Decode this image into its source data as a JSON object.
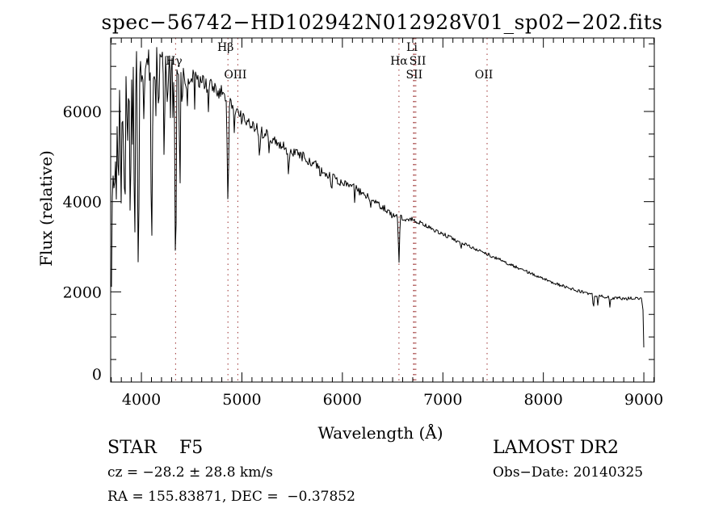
{
  "annotations": {
    "object_class": "STAR    F5",
    "survey": "LAMOST DR2",
    "cz": "cz = −28.2 ± 28.8 km/s",
    "obs_date": "Obs−Date: 20140325",
    "ra_dec": "RA = 155.83871, DEC =  −0.37852"
  },
  "chart_data": {
    "type": "line",
    "title": "spec−56742−HD102942N012928V01_sp02−202.fits",
    "xlabel": "Wavelength (Å)",
    "ylabel": "Flux (relative)",
    "xlim": [
      3694,
      9104
    ],
    "ylim": [
      0,
      7630
    ],
    "x_major_ticks": [
      4000,
      5000,
      6000,
      7000,
      8000,
      9000
    ],
    "x_minor_step": 100,
    "y_major_ticks": [
      0,
      2000,
      4000,
      6000
    ],
    "y_minor_step": 500,
    "grid": false,
    "legend": "none",
    "line_color": "#000000",
    "reference_line_color": "#9b2f2f",
    "reference_lines": [
      {
        "wavelength": 4340,
        "label": "Hγ",
        "row": 2,
        "dx": -2
      },
      {
        "wavelength": 4861,
        "label": "Hβ",
        "row": 1,
        "dx": -3
      },
      {
        "wavelength": 4959,
        "label": "OIII",
        "row": 3,
        "dx": -3
      },
      {
        "wavelength": 6563,
        "label": "Hα",
        "row": 2,
        "dx": 0
      },
      {
        "wavelength": 6708,
        "label": "Li",
        "row": 1,
        "dx": -2
      },
      {
        "wavelength": 6717,
        "label": "SII",
        "row": 2,
        "dx": 4
      },
      {
        "wavelength": 6731,
        "label": "SII",
        "row": 3,
        "dx": -2
      },
      {
        "wavelength": 7440,
        "label": "OII",
        "row": 3,
        "dx": -4
      }
    ],
    "series": {
      "name": "spectrum",
      "noise_seed": 20140325,
      "continuum_points": [
        [
          3696,
          50
        ],
        [
          3703,
          3000
        ],
        [
          3708,
          5100
        ],
        [
          3715,
          5000
        ],
        [
          3725,
          5200
        ],
        [
          3740,
          5500
        ],
        [
          3755,
          5850
        ],
        [
          3770,
          6000
        ],
        [
          3790,
          6200
        ],
        [
          3815,
          6300
        ],
        [
          3840,
          6400
        ],
        [
          3865,
          6550
        ],
        [
          3890,
          6650
        ],
        [
          3915,
          6750
        ],
        [
          3945,
          6800
        ],
        [
          3975,
          6800
        ],
        [
          4010,
          6900
        ],
        [
          4060,
          6950
        ],
        [
          4120,
          7000
        ],
        [
          4180,
          7050
        ],
        [
          4240,
          6980
        ],
        [
          4300,
          6920
        ],
        [
          4360,
          6880
        ],
        [
          4420,
          6820
        ],
        [
          4480,
          6740
        ],
        [
          4560,
          6680
        ],
        [
          4640,
          6600
        ],
        [
          4720,
          6500
        ],
        [
          4800,
          6400
        ],
        [
          4861,
          6280
        ],
        [
          4930,
          6090
        ],
        [
          5000,
          5850
        ],
        [
          5080,
          5730
        ],
        [
          5160,
          5620
        ],
        [
          5240,
          5480
        ],
        [
          5320,
          5390
        ],
        [
          5400,
          5240
        ],
        [
          5480,
          5120
        ],
        [
          5560,
          5050
        ],
        [
          5640,
          4950
        ],
        [
          5720,
          4840
        ],
        [
          5800,
          4680
        ],
        [
          5880,
          4560
        ],
        [
          5960,
          4470
        ],
        [
          6040,
          4390
        ],
        [
          6120,
          4300
        ],
        [
          6200,
          4190
        ],
        [
          6280,
          4060
        ],
        [
          6360,
          3940
        ],
        [
          6440,
          3820
        ],
        [
          6520,
          3710
        ],
        [
          6563,
          3660
        ],
        [
          6620,
          3620
        ],
        [
          6700,
          3610
        ],
        [
          6780,
          3520
        ],
        [
          6860,
          3430
        ],
        [
          6940,
          3340
        ],
        [
          7020,
          3260
        ],
        [
          7100,
          3170
        ],
        [
          7180,
          3090
        ],
        [
          7260,
          3010
        ],
        [
          7340,
          2940
        ],
        [
          7420,
          2860
        ],
        [
          7500,
          2780
        ],
        [
          7580,
          2700
        ],
        [
          7660,
          2620
        ],
        [
          7740,
          2540
        ],
        [
          7820,
          2460
        ],
        [
          7900,
          2390
        ],
        [
          7980,
          2310
        ],
        [
          8060,
          2240
        ],
        [
          8140,
          2170
        ],
        [
          8220,
          2110
        ],
        [
          8300,
          2050
        ],
        [
          8380,
          2000
        ],
        [
          8460,
          1950
        ],
        [
          8540,
          1910
        ],
        [
          8620,
          1880
        ],
        [
          8700,
          1860
        ],
        [
          8780,
          1860
        ],
        [
          8860,
          1850
        ],
        [
          8930,
          1870
        ],
        [
          8975,
          1840
        ],
        [
          8992,
          1600
        ],
        [
          9000,
          700
        ],
        [
          9006,
          60
        ]
      ],
      "noise_envelope": [
        [
          3696,
          500
        ],
        [
          3720,
          600
        ],
        [
          3760,
          550
        ],
        [
          3800,
          520
        ],
        [
          3850,
          540
        ],
        [
          3900,
          580
        ],
        [
          3950,
          600
        ],
        [
          4000,
          520
        ],
        [
          4060,
          470
        ],
        [
          4130,
          450
        ],
        [
          4200,
          380
        ],
        [
          4300,
          300
        ],
        [
          4400,
          260
        ],
        [
          4500,
          230
        ],
        [
          4600,
          200
        ],
        [
          4700,
          190
        ],
        [
          4800,
          180
        ],
        [
          4900,
          170
        ],
        [
          5000,
          160
        ],
        [
          5200,
          140
        ],
        [
          5400,
          130
        ],
        [
          5600,
          115
        ],
        [
          5800,
          105
        ],
        [
          6000,
          100
        ],
        [
          6200,
          90
        ],
        [
          6400,
          75
        ],
        [
          6563,
          60
        ],
        [
          6700,
          50
        ],
        [
          6900,
          45
        ],
        [
          7100,
          42
        ],
        [
          7400,
          38
        ],
        [
          7700,
          35
        ],
        [
          8000,
          33
        ],
        [
          8300,
          34
        ],
        [
          8600,
          38
        ],
        [
          8850,
          40
        ],
        [
          8960,
          35
        ],
        [
          9006,
          10
        ]
      ],
      "absorption_lines": [
        {
          "wavelength": 3712,
          "flux_floor": 4000,
          "half_width": 9
        },
        {
          "wavelength": 3726,
          "flux_floor": 4300,
          "half_width": 8
        },
        {
          "wavelength": 3737,
          "flux_floor": 4200,
          "half_width": 8
        },
        {
          "wavelength": 3750,
          "flux_floor": 4050,
          "half_width": 9
        },
        {
          "wavelength": 3771,
          "flux_floor": 4200,
          "half_width": 9
        },
        {
          "wavelength": 3798,
          "flux_floor": 3950,
          "half_width": 10
        },
        {
          "wavelength": 3820,
          "flux_floor": 4800,
          "half_width": 7
        },
        {
          "wavelength": 3835,
          "flux_floor": 3700,
          "half_width": 11
        },
        {
          "wavelength": 3860,
          "flux_floor": 5000,
          "half_width": 7
        },
        {
          "wavelength": 3889,
          "flux_floor": 3600,
          "half_width": 11
        },
        {
          "wavelength": 3910,
          "flux_floor": 5200,
          "half_width": 7
        },
        {
          "wavelength": 3933,
          "flux_floor": 3050,
          "half_width": 11
        },
        {
          "wavelength": 3969,
          "flux_floor": 2500,
          "half_width": 13
        },
        {
          "wavelength": 4026,
          "flux_floor": 5600,
          "half_width": 7
        },
        {
          "wavelength": 4102,
          "flux_floor": 3060,
          "half_width": 13
        },
        {
          "wavelength": 4144,
          "flux_floor": 5900,
          "half_width": 7
        },
        {
          "wavelength": 4172,
          "flux_floor": 5700,
          "half_width": 7
        },
        {
          "wavelength": 4227,
          "flux_floor": 4700,
          "half_width": 8
        },
        {
          "wavelength": 4260,
          "flux_floor": 5900,
          "half_width": 7
        },
        {
          "wavelength": 4290,
          "flux_floor": 5800,
          "half_width": 7
        },
        {
          "wavelength": 4315,
          "flux_floor": 5700,
          "half_width": 7
        },
        {
          "wavelength": 4340,
          "flux_floor": 2520,
          "half_width": 13
        },
        {
          "wavelength": 4383,
          "flux_floor": 4100,
          "half_width": 9
        },
        {
          "wavelength": 4405,
          "flux_floor": 5900,
          "half_width": 7
        },
        {
          "wavelength": 4455,
          "flux_floor": 5950,
          "half_width": 7
        },
        {
          "wavelength": 4530,
          "flux_floor": 6050,
          "half_width": 7
        },
        {
          "wavelength": 4668,
          "flux_floor": 5950,
          "half_width": 7
        },
        {
          "wavelength": 4861,
          "flux_floor": 4000,
          "half_width": 13
        },
        {
          "wavelength": 4925,
          "flux_floor": 5500,
          "half_width": 7
        },
        {
          "wavelength": 5175,
          "flux_floor": 5000,
          "half_width": 12
        },
        {
          "wavelength": 5270,
          "flux_floor": 5080,
          "half_width": 9
        },
        {
          "wavelength": 5465,
          "flux_floor": 4520,
          "half_width": 8
        },
        {
          "wavelength": 5780,
          "flux_floor": 4470,
          "half_width": 7
        },
        {
          "wavelength": 5893,
          "flux_floor": 4240,
          "half_width": 10
        },
        {
          "wavelength": 6122,
          "flux_floor": 3980,
          "half_width": 7
        },
        {
          "wavelength": 6280,
          "flux_floor": 3830,
          "half_width": 7
        },
        {
          "wavelength": 6495,
          "flux_floor": 3560,
          "half_width": 6
        },
        {
          "wavelength": 6563,
          "flux_floor": 2640,
          "half_width": 11
        },
        {
          "wavelength": 7180,
          "flux_floor": 2930,
          "half_width": 7
        },
        {
          "wavelength": 8498,
          "flux_floor": 1630,
          "half_width": 9
        },
        {
          "wavelength": 8542,
          "flux_floor": 1700,
          "half_width": 9
        },
        {
          "wavelength": 8662,
          "flux_floor": 1660,
          "half_width": 9
        }
      ]
    }
  }
}
